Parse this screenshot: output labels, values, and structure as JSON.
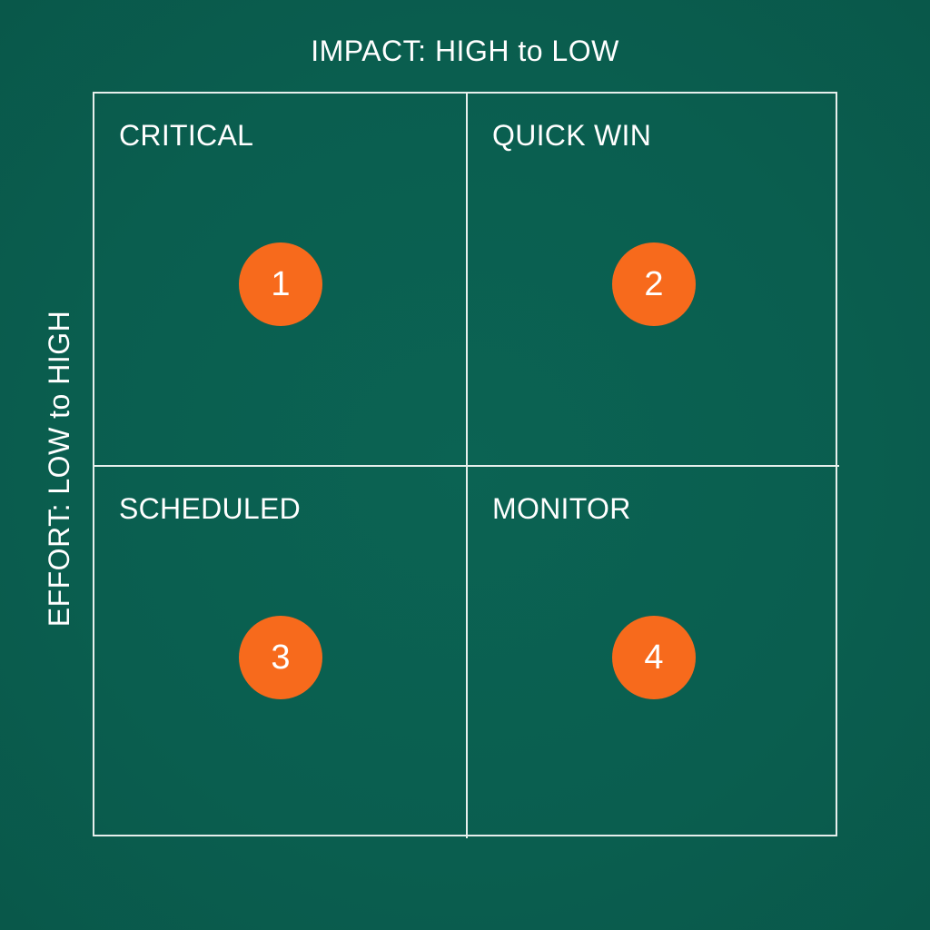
{
  "axes": {
    "top": "IMPACT: HIGH to LOW",
    "left": "EFFORT: LOW to HIGH"
  },
  "quadrants": [
    {
      "label": "CRITICAL",
      "number": "1"
    },
    {
      "label": "QUICK WIN",
      "number": "2"
    },
    {
      "label": "SCHEDULED",
      "number": "3"
    },
    {
      "label": "MONITOR",
      "number": "4"
    }
  ],
  "colors": {
    "background": "#0a5f50",
    "lines": "#e6efec",
    "badge": "#f76a1c",
    "text": "#ffffff"
  }
}
